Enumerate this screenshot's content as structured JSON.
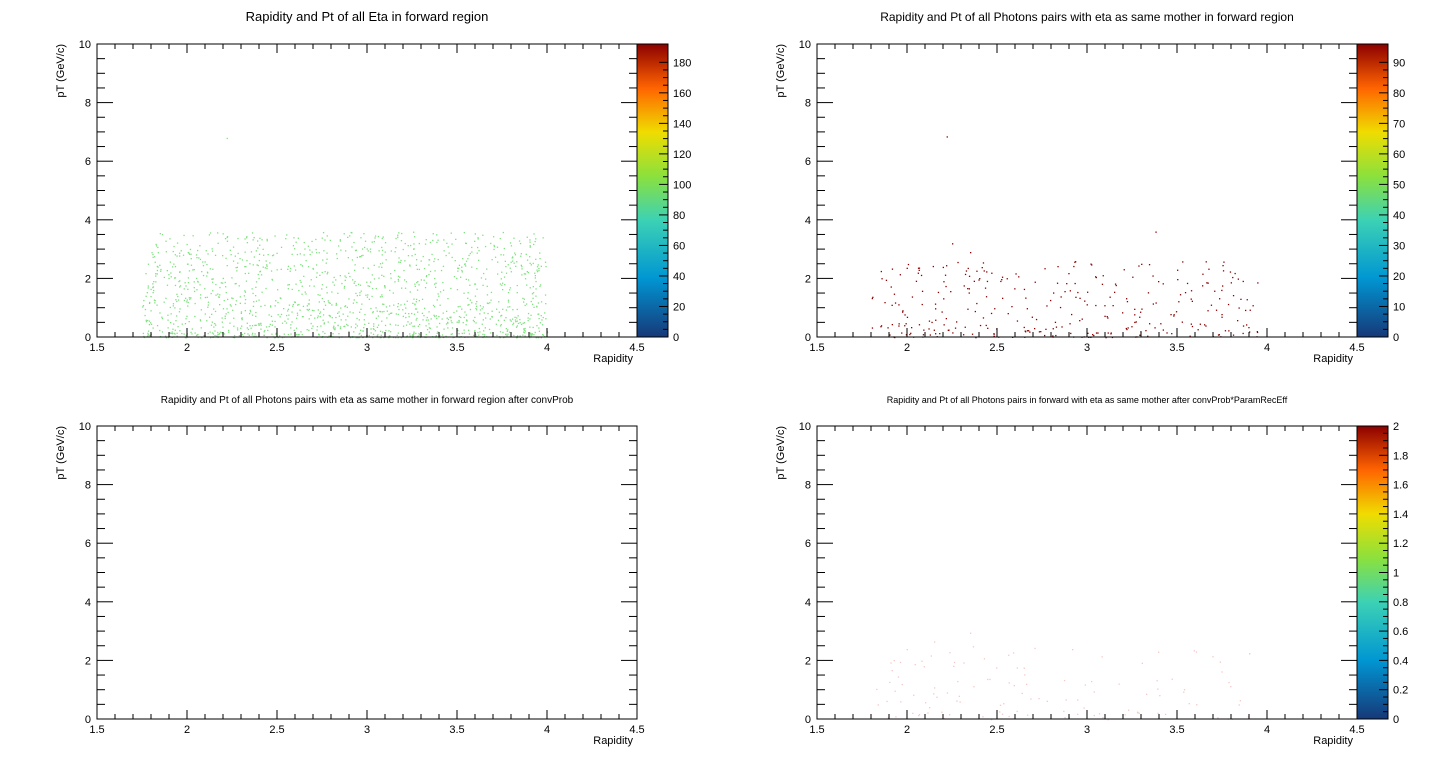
{
  "chart_data": [
    {
      "type": "heatmap",
      "title": "Rapidity and Pt of all Eta in forward region",
      "xlabel": "Rapidity",
      "ylabel": "pT (GeV/c)",
      "xlim": [
        1.5,
        4.5
      ],
      "ylim": [
        0,
        10
      ],
      "x_ticks": [
        "1.5",
        "2",
        "2.5",
        "3",
        "3.5",
        "4",
        "4.5"
      ],
      "y_ticks": [
        "0",
        "2",
        "4",
        "6",
        "8",
        "10"
      ],
      "palette": "rainbow",
      "colorbar": {
        "min": 0,
        "max": 192,
        "ticks": [
          "0",
          "20",
          "40",
          "60",
          "80",
          "100",
          "120",
          "140",
          "160",
          "180"
        ]
      },
      "cell_color": "#7fe27f",
      "region": {
        "x": [
          1.75,
          4.0
        ],
        "y": [
          0,
          3.6
        ],
        "density": 1500,
        "outliers": [
          [
            2.22,
            6.8
          ]
        ]
      }
    },
    {
      "type": "heatmap",
      "title": "Rapidity and Pt of all Photons pairs with eta as same mother in forward region",
      "xlabel": "Rapidity",
      "ylabel": "pT (GeV/c)",
      "xlim": [
        1.5,
        4.5
      ],
      "ylim": [
        0,
        10
      ],
      "x_ticks": [
        "1.5",
        "2",
        "2.5",
        "3",
        "3.5",
        "4",
        "4.5"
      ],
      "y_ticks": [
        "0",
        "2",
        "4",
        "6",
        "8",
        "10"
      ],
      "palette": "rainbow",
      "colorbar": {
        "min": 0,
        "max": 96,
        "ticks": [
          "0",
          "10",
          "20",
          "30",
          "40",
          "50",
          "60",
          "70",
          "80",
          "90"
        ]
      },
      "cell_color": "#8b0000",
      "region": {
        "x": [
          1.8,
          3.95
        ],
        "y": [
          0,
          2.6
        ],
        "density": 320,
        "outliers": [
          [
            2.22,
            6.85
          ],
          [
            2.25,
            3.2
          ],
          [
            2.35,
            2.9
          ],
          [
            3.38,
            3.6
          ],
          [
            3.5,
            2.3
          ]
        ]
      }
    },
    {
      "type": "heatmap",
      "title": "Rapidity and Pt of all Photons pairs with eta as same mother in forward region after convProb",
      "xlabel": "Rapidity",
      "ylabel": "pT (GeV/c)",
      "xlim": [
        1.5,
        4.5
      ],
      "ylim": [
        0,
        10
      ],
      "x_ticks": [
        "1.5",
        "2",
        "2.5",
        "3",
        "3.5",
        "4",
        "4.5"
      ],
      "y_ticks": [
        "0",
        "2",
        "4",
        "6",
        "8",
        "10"
      ],
      "palette": "rainbow",
      "colorbar": null,
      "cell_color": "#ffffff",
      "region": null
    },
    {
      "type": "heatmap",
      "title": "Rapidity and Pt of all Photons pairs in forward with eta as same mother after convProb*ParamRecEff",
      "xlabel": "Rapidity",
      "ylabel": "pT (GeV/c)",
      "xlim": [
        1.5,
        4.5
      ],
      "ylim": [
        0,
        10
      ],
      "x_ticks": [
        "1.5",
        "2",
        "2.5",
        "3",
        "3.5",
        "4",
        "4.5"
      ],
      "y_ticks": [
        "0",
        "2",
        "4",
        "6",
        "8",
        "10"
      ],
      "palette": "rainbow",
      "colorbar": {
        "min": 0,
        "max": 2,
        "ticks": [
          "0",
          "0.2",
          "0.4",
          "0.6",
          "0.8",
          "1",
          "1.2",
          "1.4",
          "1.6",
          "1.8",
          "2"
        ]
      },
      "cell_color": "#f4c8c8",
      "region": {
        "x": [
          1.8,
          3.95
        ],
        "y": [
          0,
          2.5
        ],
        "density": 120,
        "outliers": [
          [
            2.15,
            2.65
          ],
          [
            2.35,
            2.95
          ],
          [
            3.9,
            2.25
          ]
        ]
      }
    }
  ]
}
